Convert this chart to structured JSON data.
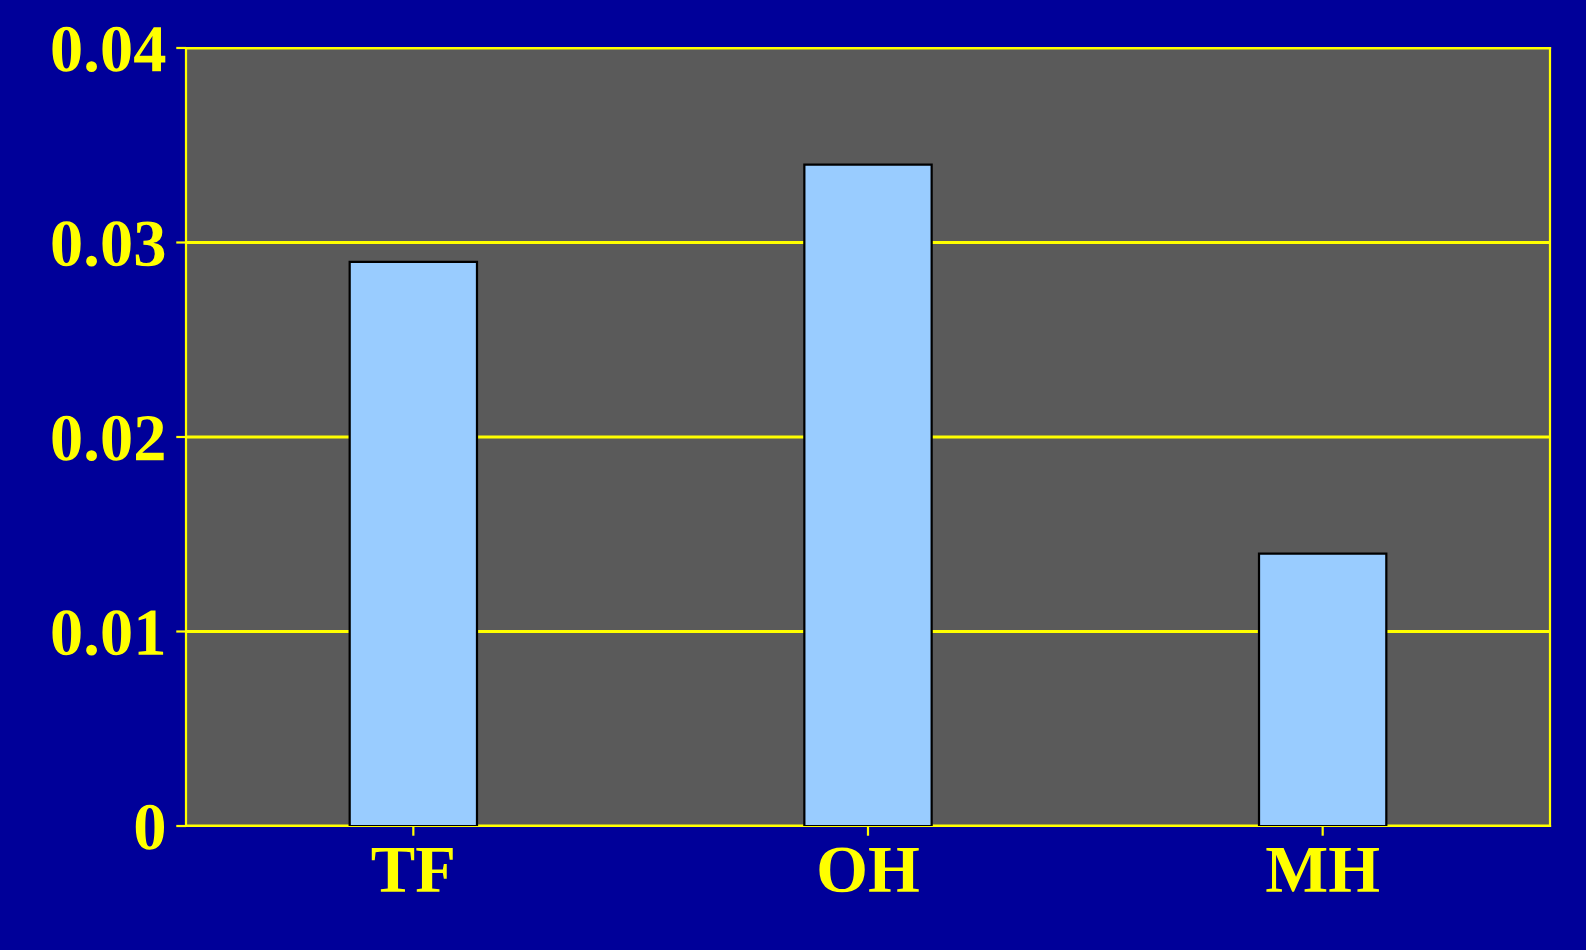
{
  "chart_data": {
    "type": "bar",
    "categories": [
      "TF",
      "OH",
      "MH"
    ],
    "values": [
      0.029,
      0.034,
      0.014
    ],
    "color": "#99ccff",
    "ylim": [
      0,
      0.04
    ],
    "yticks": [
      0,
      0.01,
      0.02,
      0.03,
      0.04
    ],
    "grid": "y"
  }
}
